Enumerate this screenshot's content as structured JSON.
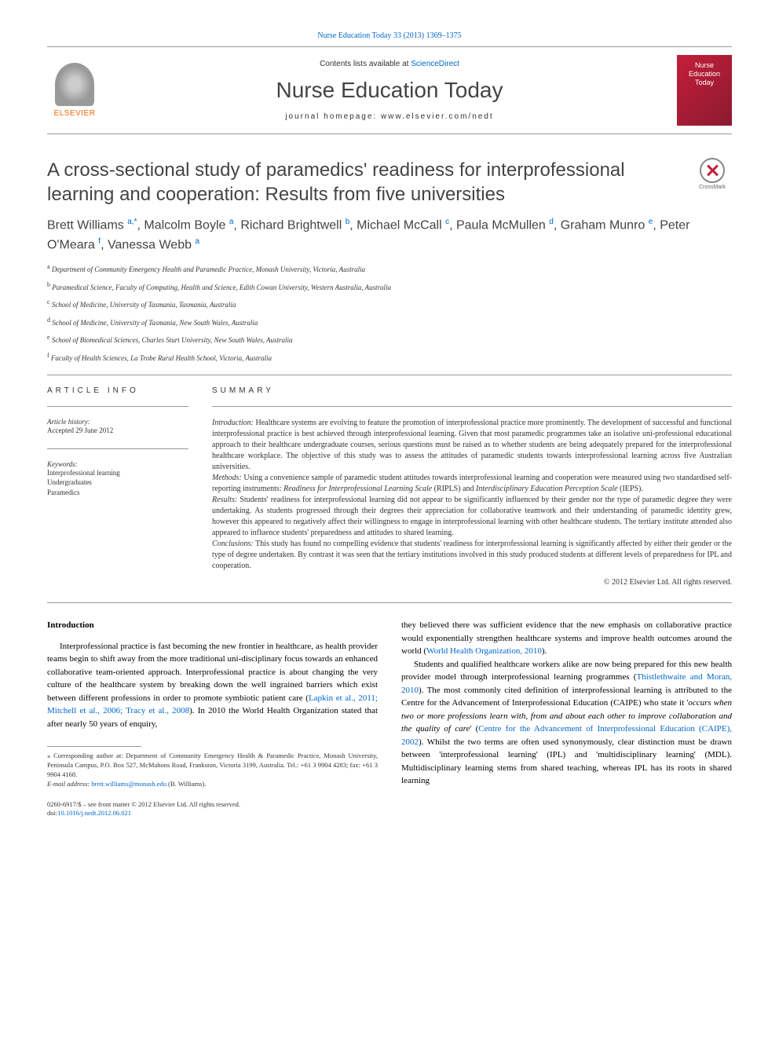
{
  "top_link": "Nurse Education Today 33 (2013) 1369–1375",
  "header": {
    "contents_prefix": "Contents lists available at ",
    "contents_link": "ScienceDirect",
    "journal_title": "Nurse Education Today",
    "homepage_prefix": "journal homepage: ",
    "homepage": "www.elsevier.com/nedt",
    "elsevier": "ELSEVIER",
    "cover_line1": "Nurse",
    "cover_line2": "Education",
    "cover_line3": "Today"
  },
  "crossmark": "CrossMark",
  "title": "A cross-sectional study of paramedics' readiness for interprofessional learning and cooperation: Results from five universities",
  "authors_html": "Brett Williams <sup><a>a,</a></sup><sup><a>*</a></sup>, Malcolm Boyle <sup><a>a</a></sup>, Richard Brightwell <sup><a>b</a></sup>, Michael McCall <sup><a>c</a></sup>, Paula McMullen <sup><a>d</a></sup>, Graham Munro <sup><a>e</a></sup>, Peter O'Meara <sup><a>f</a></sup>, Vanessa Webb <sup><a>a</a></sup>",
  "affiliations": [
    {
      "sup": "a",
      "text": "Department of Community Emergency Health and Paramedic Practice, Monash University, Victoria, Australia"
    },
    {
      "sup": "b",
      "text": "Paramedical Science, Faculty of Computing, Health and Science, Edith Cowan University, Western Australia, Australia"
    },
    {
      "sup": "c",
      "text": "School of Medicine, University of Tasmania, Tasmania, Australia"
    },
    {
      "sup": "d",
      "text": "School of Medicine, University of Tasmania, New South Wales, Australia"
    },
    {
      "sup": "e",
      "text": "School of Biomedical Sciences, Charles Sturt University, New South Wales, Australia"
    },
    {
      "sup": "f",
      "text": "Faculty of Health Sciences, La Trobe Rural Health School, Victoria, Australia"
    }
  ],
  "info": {
    "heading": "ARTICLE INFO",
    "history_label": "Article history:",
    "history_text": "Accepted 29 June 2012",
    "keywords_label": "Keywords:",
    "keywords": [
      "Interprofessional learning",
      "Undergraduates",
      "Paramedics"
    ]
  },
  "summary": {
    "heading": "SUMMARY",
    "intro_label": "Introduction:",
    "intro": " Healthcare systems are evolving to feature the promotion of interprofessional practice more prominently. The development of successful and functional interprofessional practice is best achieved through interprofessional learning. Given that most paramedic programmes take an isolative uni-professional educational approach to their healthcare undergraduate courses, serious questions must be raised as to whether students are being adequately prepared for the interprofessional healthcare workplace. The objective of this study was to assess the attitudes of paramedic students towards interprofessional learning across five Australian universities.",
    "methods_label": "Methods:",
    "methods": " Using a convenience sample of paramedic student attitudes towards interprofessional learning and cooperation were measured using two standardised self-reporting instruments: ",
    "methods_em1": "Readiness for Interprofessional Learning Scale",
    "methods_mid": " (RIPLS) and ",
    "methods_em2": "Interdisciplinary Education Perception Scale",
    "methods_end": " (IEPS).",
    "results_label": "Results:",
    "results": " Students' readiness for interprofessional learning did not appear to be significantly influenced by their gender nor the type of paramedic degree they were undertaking. As students progressed through their degrees their appreciation for collaborative teamwork and their understanding of paramedic identity grew, however this appeared to negatively affect their willingness to engage in interprofessional learning with other healthcare students. The tertiary institute attended also appeared to influence students' preparedness and attitudes to shared learning.",
    "conclusions_label": "Conclusions:",
    "conclusions": " This study has found no compelling evidence that students' readiness for interprofessional learning is significantly affected by either their gender or the type of degree undertaken. By contrast it was seen that the tertiary institutions involved in this study produced students at different levels of preparedness for IPL and cooperation.",
    "copyright": "© 2012 Elsevier Ltd. All rights reserved."
  },
  "body": {
    "heading": "Introduction",
    "col1_p1_pre": "Interprofessional practice is fast becoming the new frontier in healthcare, as health provider teams begin to shift away from the more traditional uni-disciplinary focus towards an enhanced collaborative team-oriented approach. Interprofessional practice is about changing the very culture of the healthcare system by breaking down the well ingrained barriers which exist between different professions in order to promote symbiotic patient care (",
    "col1_p1_link": "Lapkin et al., 2011; Mitchell et al., 2006; Tracy et al., 2008",
    "col1_p1_post": "). In 2010 the World Health Organization stated that after nearly 50 years of enquiry,",
    "col2_p1_pre": "they believed there was sufficient evidence that the new emphasis on collaborative practice would exponentially strengthen healthcare systems and improve health outcomes around the world (",
    "col2_p1_link": "World Health Organization, 2010",
    "col2_p1_post": ").",
    "col2_p2_pre": "Students and qualified healthcare workers alike are now being prepared for this new health provider model through interprofessional learning programmes (",
    "col2_p2_link1": "Thistlethwaite and Moran, 2010",
    "col2_p2_mid1": "). The most commonly cited definition of interprofessional learning is attributed to the Centre for the Advancement of Interprofessional Education (CAIPE) who state it '",
    "col2_p2_em": "occurs when two or more professions learn with, from and about each other to improve collaboration and the quality of care",
    "col2_p2_mid2": "' (",
    "col2_p2_link2": "Centre for the Advancement of Interprofessional Education (CAIPE), 2002",
    "col2_p2_post": "). Whilst the two terms are often used synonymously, clear distinction must be drawn between 'interprofessional learning' (IPL) and 'multidisciplinary learning' (MDL). Multidisciplinary learning stems from shared teaching, whereas IPL has its roots in shared learning"
  },
  "footnote": {
    "corr": "⁎ Corresponding author at: Department of Community Emergency Health & Paramedic Practice, Monash University, Peninsula Campus, P.O. Box 527, McMahons Road, Frankston, Victoria 3199, Australia. Tel.: +61 3 9904 4283; fax: +61 3 9904 4168.",
    "email_label": "E-mail address: ",
    "email": "brett.williams@monash.edu",
    "email_suffix": " (B. Williams)."
  },
  "footer": {
    "line1": "0260-6917/$ – see front matter © 2012 Elsevier Ltd. All rights reserved.",
    "doi_label": "doi:",
    "doi": "10.1016/j.nedt.2012.06.021"
  },
  "colors": {
    "link": "#0066cc",
    "accent": "#ff6600",
    "cover": "#c41e3a",
    "text": "#333333",
    "rule": "#999999"
  }
}
